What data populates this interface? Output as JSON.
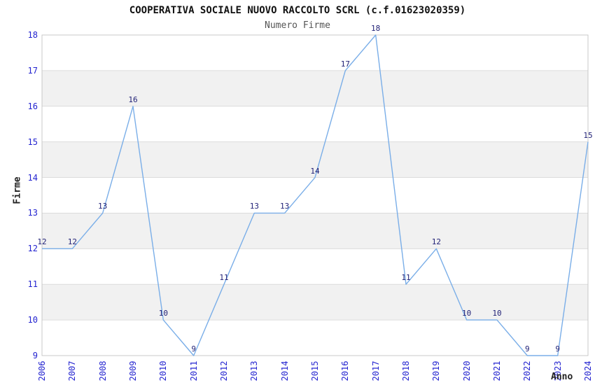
{
  "header": {
    "title": "COOPERATIVA SOCIALE NUOVO RACCOLTO SCRL (c.f.01623020359)",
    "subtitle": "Numero Firme"
  },
  "chart_data": {
    "type": "line",
    "title": "COOPERATIVA SOCIALE NUOVO RACCOLTO SCRL (c.f.01623020359)",
    "subtitle": "Numero Firme",
    "xlabel": "Anno",
    "ylabel": "Firme",
    "categories": [
      "2006",
      "2007",
      "2008",
      "2009",
      "2010",
      "2011",
      "2012",
      "2013",
      "2014",
      "2015",
      "2016",
      "2017",
      "2018",
      "2019",
      "2020",
      "2021",
      "2022",
      "2023",
      "2024"
    ],
    "values": [
      12,
      12,
      13,
      16,
      10,
      9,
      11,
      13,
      13,
      14,
      17,
      18,
      11,
      12,
      10,
      10,
      9,
      9,
      15
    ],
    "ylim": [
      9,
      18
    ],
    "yticks": [
      9,
      10,
      11,
      12,
      13,
      14,
      15,
      16,
      17,
      18
    ],
    "point_labels": [
      "12",
      "12",
      "13",
      "16",
      "10",
      "9",
      "11",
      "13",
      "13",
      "14",
      "17",
      "18",
      "11",
      "12",
      "10",
      "10",
      "9",
      "9",
      "15"
    ],
    "grid": "horizontal gridlines with alternating shaded bands",
    "legend": "none",
    "markers": "none",
    "colors": {
      "line": "#7aaee8",
      "band": "#f1f1f1",
      "gridline": "#dcdcdc",
      "plot_border": "#c8c8c8",
      "tick_label": "#2424d0",
      "point_label": "#222277",
      "title": "#111111",
      "subtitle": "#555555",
      "axis_label": "#222222"
    }
  }
}
